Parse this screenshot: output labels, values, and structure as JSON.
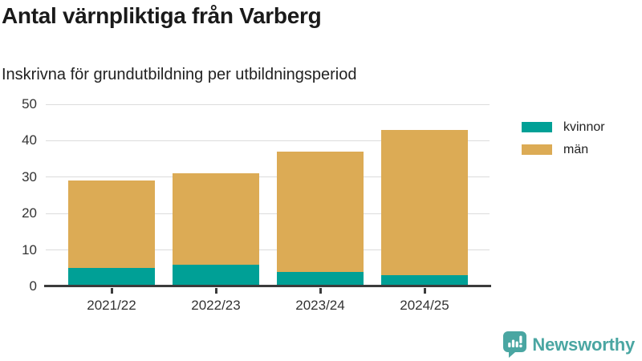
{
  "header": {
    "title": "Antal värnpliktiga från Varberg",
    "subtitle": "Inskrivna för grundutbildning per utbildningsperiod"
  },
  "chart_data": {
    "type": "bar",
    "stacked": true,
    "title": "Antal värnpliktiga från Varberg",
    "subtitle": "Inskrivna för grundutbildning per utbildningsperiod",
    "categories": [
      "2021/22",
      "2022/23",
      "2023/24",
      "2024/25"
    ],
    "series": [
      {
        "name": "kvinnor",
        "color": "#00a096",
        "values": [
          5,
          6,
          4,
          3
        ]
      },
      {
        "name": "män",
        "color": "#dcab55",
        "values": [
          24,
          25,
          33,
          40
        ]
      }
    ],
    "totals": [
      29,
      31,
      37,
      43
    ],
    "xlabel": "",
    "ylabel": "",
    "ylim": [
      0,
      50
    ],
    "yticks": [
      0,
      10,
      20,
      30,
      40,
      50
    ],
    "grid": "horizontal",
    "legend_position": "right"
  },
  "legend": {
    "items": [
      {
        "label": "kvinnor",
        "color": "#00a096"
      },
      {
        "label": "män",
        "color": "#dcab55"
      }
    ]
  },
  "footer": {
    "brand": "Newsworthy",
    "brand_color": "#4aa6a2"
  },
  "colors": {
    "axis": "#3b3b3b",
    "gridline": "#dcdcdc",
    "tick_text": "#333333",
    "title_text": "#1a1a1a"
  }
}
